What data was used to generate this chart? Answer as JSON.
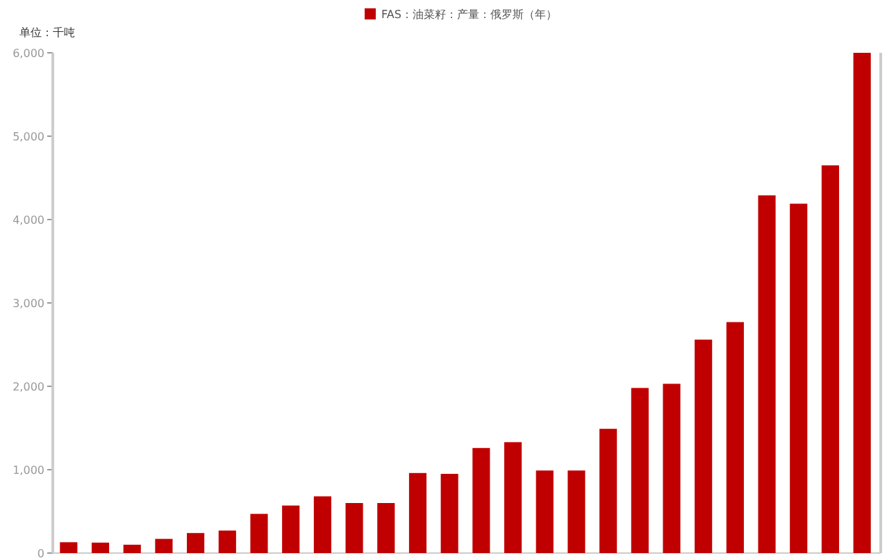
{
  "chart_data": {
    "type": "bar",
    "ylabel": "单位：千吨",
    "legend": "top",
    "categories": [
      null,
      null,
      null,
      null,
      null,
      null,
      null,
      null,
      null,
      null,
      null,
      null,
      null,
      null,
      null,
      null,
      null,
      null,
      null,
      null,
      null,
      null,
      null,
      null,
      null,
      null
    ],
    "series": [
      {
        "name": "FAS：油菜籽：产量：俄罗斯（年）",
        "color": "#c00000",
        "values": [
          130,
          125,
          100,
          170,
          240,
          270,
          470,
          570,
          680,
          600,
          600,
          960,
          950,
          1260,
          1330,
          990,
          990,
          1490,
          1980,
          2030,
          2560,
          2770,
          4290,
          4190,
          4650,
          6000
        ]
      }
    ],
    "ylim": [
      0,
      6000
    ],
    "yticks": [
      0,
      {
        "value": 1000,
        "label": "1,000"
      },
      {
        "value": 2000,
        "label": "2,000"
      },
      {
        "value": 3000,
        "label": "3,000"
      },
      {
        "value": 4000,
        "label": "4,000"
      },
      {
        "value": 5000,
        "label": "5,000"
      },
      {
        "value": 6000,
        "label": "6,000"
      }
    ],
    "grid": false
  }
}
